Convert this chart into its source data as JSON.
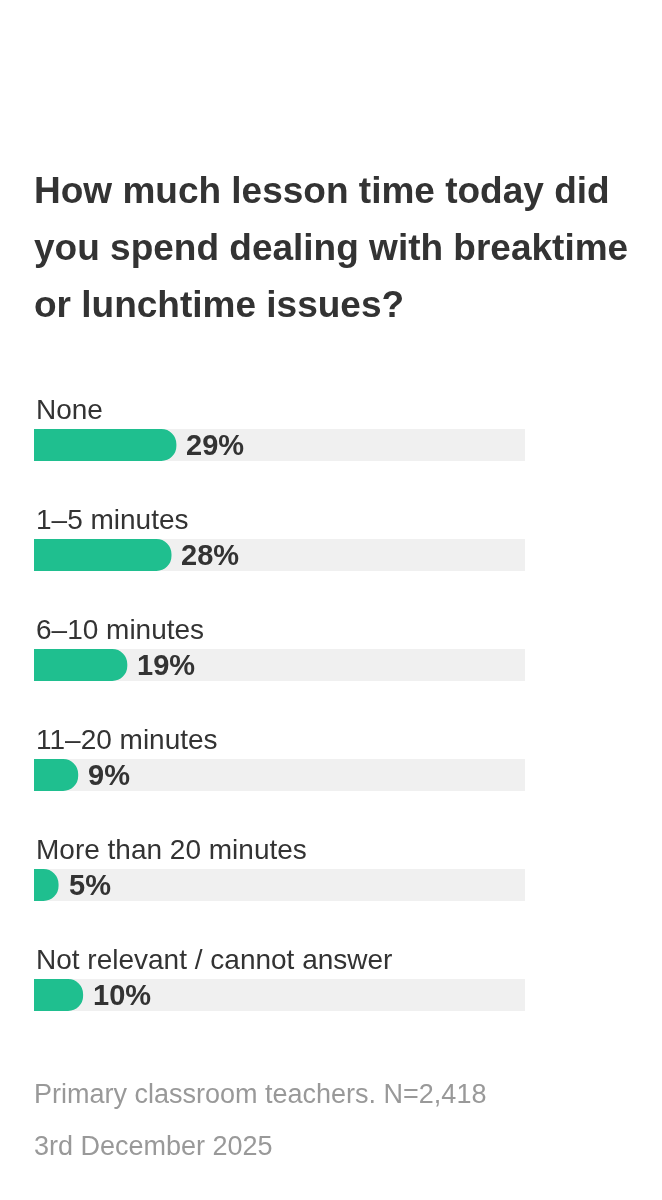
{
  "chart_data": {
    "type": "bar",
    "orientation": "horizontal",
    "title": "How much lesson time today did you spend dealing with breaktime or lunchtime issues?",
    "categories": [
      "None",
      "1–5 minutes",
      "6–10 minutes",
      "11–20 minutes",
      "More than 20 minutes",
      "Not relevant / cannot answer"
    ],
    "values": [
      29,
      28,
      19,
      9,
      5,
      10
    ],
    "value_labels": [
      "29%",
      "28%",
      "19%",
      "9%",
      "5%",
      "10%"
    ],
    "color": "#1fbf8f",
    "xlim": [
      0,
      100
    ],
    "grid": false,
    "legend": false,
    "tick_labels": "y",
    "annotations": [
      "Primary classroom teachers. N=2,418",
      "3rd December 2025"
    ]
  }
}
